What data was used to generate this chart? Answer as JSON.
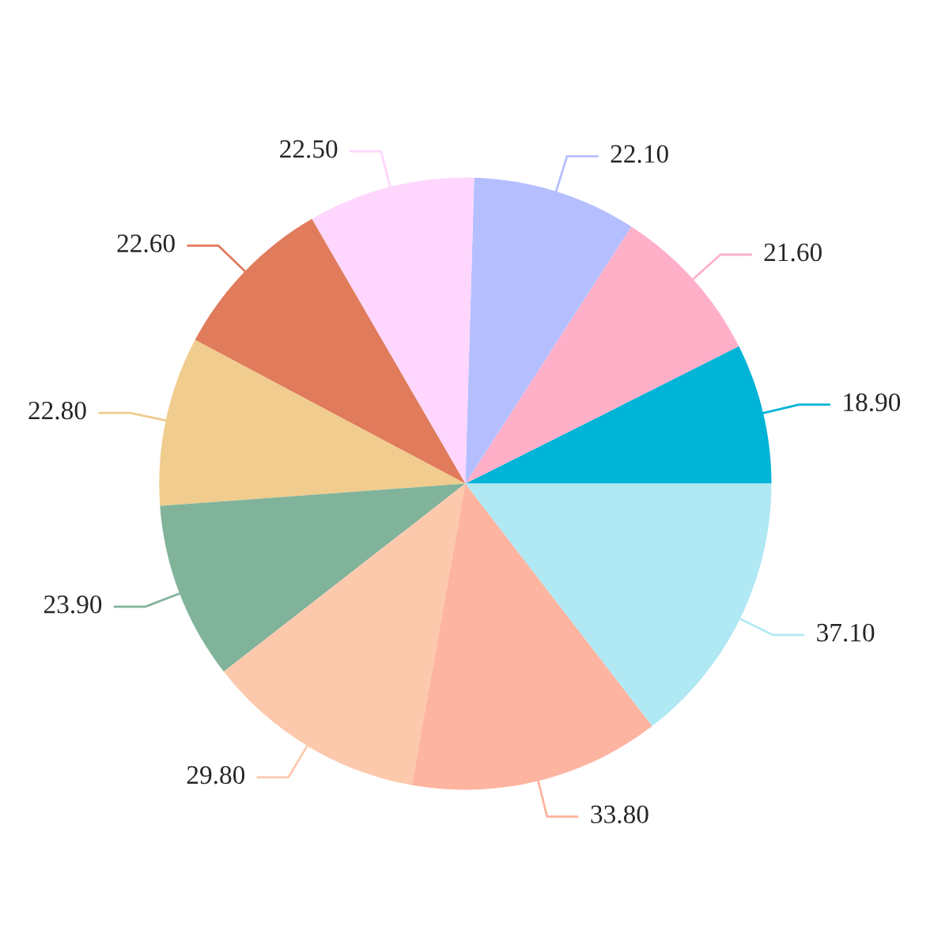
{
  "chart_data": {
    "type": "pie",
    "categories": [
      null,
      null,
      null,
      null,
      null,
      null,
      null,
      null,
      null,
      null
    ],
    "values": [
      18.9,
      21.6,
      22.1,
      22.5,
      22.6,
      22.8,
      23.9,
      29.8,
      33.8,
      37.1
    ],
    "colors": [
      "#00b4d8",
      "#ffb0c8",
      "#b5bfff",
      "#ffd6fe",
      "#e07b5c",
      "#f0cc8e",
      "#80b39a",
      "#fdc9ad",
      "#fdb4a0",
      "#b0e8f4"
    ],
    "value_labels": [
      "18.90",
      "21.60",
      "22.10",
      "22.50",
      "22.60",
      "22.80",
      "23.90",
      "29.80",
      "33.80",
      "37.10"
    ]
  }
}
